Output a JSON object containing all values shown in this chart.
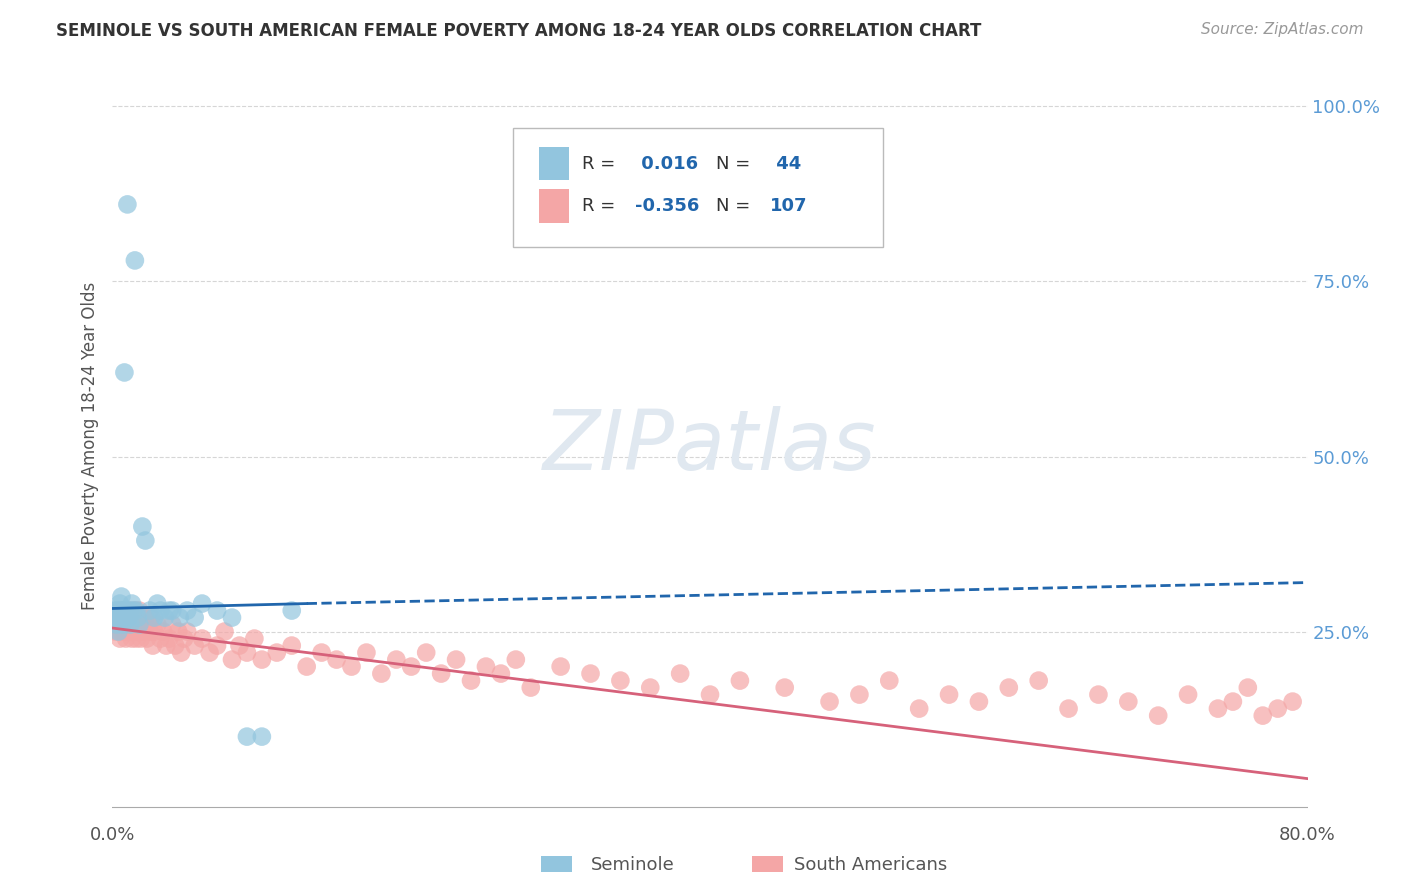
{
  "title": "SEMINOLE VS SOUTH AMERICAN FEMALE POVERTY AMONG 18-24 YEAR OLDS CORRELATION CHART",
  "source": "Source: ZipAtlas.com",
  "ylabel": "Female Poverty Among 18-24 Year Olds",
  "xlim": [
    0.0,
    0.8
  ],
  "ylim": [
    -0.02,
    1.05
  ],
  "xticks": [
    0.0,
    0.2,
    0.4,
    0.6,
    0.8
  ],
  "xticklabels": [
    "0.0%",
    "",
    "",
    "",
    "80.0%"
  ],
  "ytick_right": [
    0.25,
    0.5,
    0.75,
    1.0
  ],
  "ytick_right_labels": [
    "25.0%",
    "50.0%",
    "75.0%",
    "100.0%"
  ],
  "color_seminole": "#92c5de",
  "color_south_american": "#f4a6a6",
  "color_trend_seminole": "#2166ac",
  "color_trend_south_american": "#d6617a",
  "color_grid": "#cccccc",
  "background_color": "#ffffff",
  "watermark_text": "ZIPatlas",
  "watermark_color": "#e0e8f0",
  "legend_R1": " 0.016",
  "legend_N1": " 44",
  "legend_R2": "-0.356",
  "legend_N2": "107",
  "legend_label_color": "#2166ac",
  "legend_text_color": "#333333",
  "tick_color": "#5b9bd5",
  "seminole_x": [
    0.001,
    0.002,
    0.003,
    0.003,
    0.004,
    0.004,
    0.005,
    0.005,
    0.006,
    0.006,
    0.007,
    0.007,
    0.008,
    0.008,
    0.009,
    0.01,
    0.01,
    0.011,
    0.012,
    0.012,
    0.013,
    0.014,
    0.015,
    0.016,
    0.017,
    0.018,
    0.02,
    0.022,
    0.025,
    0.028,
    0.03,
    0.032,
    0.035,
    0.038,
    0.04,
    0.045,
    0.05,
    0.055,
    0.06,
    0.07,
    0.08,
    0.09,
    0.1,
    0.12
  ],
  "seminole_y": [
    0.28,
    0.27,
    0.28,
    0.26,
    0.27,
    0.25,
    0.29,
    0.28,
    0.3,
    0.27,
    0.28,
    0.26,
    0.62,
    0.28,
    0.27,
    0.86,
    0.28,
    0.27,
    0.28,
    0.26,
    0.29,
    0.28,
    0.78,
    0.28,
    0.27,
    0.26,
    0.4,
    0.38,
    0.28,
    0.27,
    0.29,
    0.28,
    0.27,
    0.28,
    0.28,
    0.27,
    0.28,
    0.27,
    0.29,
    0.28,
    0.27,
    0.1,
    0.1,
    0.28
  ],
  "south_american_x": [
    0.001,
    0.002,
    0.003,
    0.004,
    0.005,
    0.005,
    0.006,
    0.006,
    0.007,
    0.007,
    0.008,
    0.008,
    0.009,
    0.009,
    0.01,
    0.01,
    0.011,
    0.011,
    0.012,
    0.012,
    0.013,
    0.013,
    0.014,
    0.014,
    0.015,
    0.015,
    0.016,
    0.016,
    0.017,
    0.017,
    0.018,
    0.019,
    0.02,
    0.021,
    0.022,
    0.023,
    0.024,
    0.025,
    0.026,
    0.027,
    0.028,
    0.03,
    0.032,
    0.034,
    0.036,
    0.038,
    0.04,
    0.042,
    0.044,
    0.046,
    0.048,
    0.05,
    0.055,
    0.06,
    0.065,
    0.07,
    0.075,
    0.08,
    0.085,
    0.09,
    0.095,
    0.1,
    0.11,
    0.12,
    0.13,
    0.14,
    0.15,
    0.16,
    0.17,
    0.18,
    0.19,
    0.2,
    0.21,
    0.22,
    0.23,
    0.24,
    0.25,
    0.26,
    0.27,
    0.28,
    0.3,
    0.32,
    0.34,
    0.36,
    0.38,
    0.4,
    0.42,
    0.45,
    0.48,
    0.5,
    0.52,
    0.54,
    0.56,
    0.58,
    0.6,
    0.62,
    0.64,
    0.66,
    0.68,
    0.7,
    0.72,
    0.74,
    0.75,
    0.76,
    0.77,
    0.78,
    0.79
  ],
  "south_american_y": [
    0.26,
    0.25,
    0.27,
    0.26,
    0.28,
    0.24,
    0.27,
    0.25,
    0.26,
    0.28,
    0.25,
    0.27,
    0.26,
    0.24,
    0.27,
    0.25,
    0.26,
    0.28,
    0.25,
    0.27,
    0.26,
    0.24,
    0.27,
    0.25,
    0.26,
    0.28,
    0.24,
    0.27,
    0.25,
    0.26,
    0.28,
    0.24,
    0.26,
    0.25,
    0.27,
    0.24,
    0.26,
    0.25,
    0.27,
    0.23,
    0.25,
    0.26,
    0.24,
    0.25,
    0.23,
    0.24,
    0.26,
    0.23,
    0.25,
    0.22,
    0.24,
    0.25,
    0.23,
    0.24,
    0.22,
    0.23,
    0.25,
    0.21,
    0.23,
    0.22,
    0.24,
    0.21,
    0.22,
    0.23,
    0.2,
    0.22,
    0.21,
    0.2,
    0.22,
    0.19,
    0.21,
    0.2,
    0.22,
    0.19,
    0.21,
    0.18,
    0.2,
    0.19,
    0.21,
    0.17,
    0.2,
    0.19,
    0.18,
    0.17,
    0.19,
    0.16,
    0.18,
    0.17,
    0.15,
    0.16,
    0.18,
    0.14,
    0.16,
    0.15,
    0.17,
    0.18,
    0.14,
    0.16,
    0.15,
    0.13,
    0.16,
    0.14,
    0.15,
    0.17,
    0.13,
    0.14,
    0.15
  ]
}
